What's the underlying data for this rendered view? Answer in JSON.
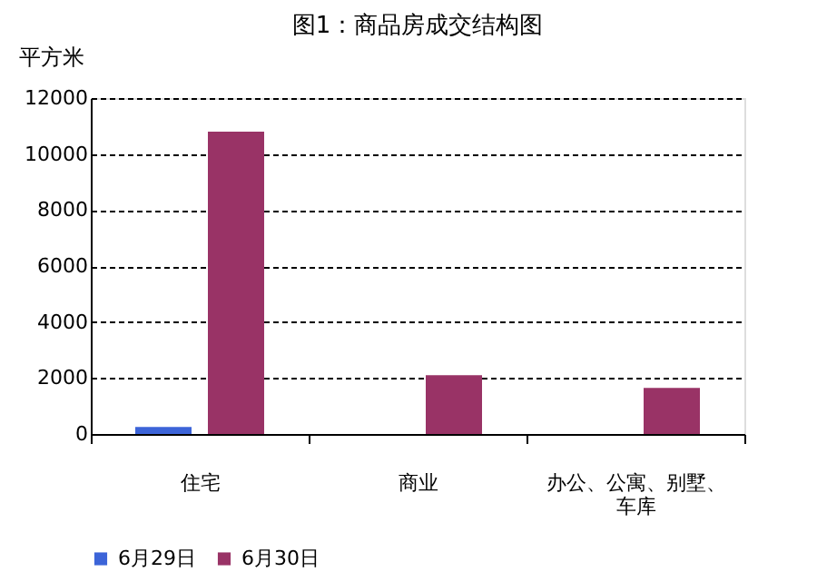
{
  "chart_data": {
    "type": "bar",
    "title": "图1：商品房成交结构图",
    "ylabel": "平方米",
    "categories": [
      "住宅",
      "商业",
      "办公、公寓、别墅、车库"
    ],
    "series": [
      {
        "name": "6月29日",
        "color": "#3c64d8",
        "values": [
          250,
          0,
          0
        ]
      },
      {
        "name": "6月30日",
        "color": "#993366",
        "values": [
          10800,
          2100,
          1650
        ]
      }
    ],
    "ylim": [
      0,
      12000
    ],
    "yticks": [
      0,
      2000,
      4000,
      6000,
      8000,
      10000,
      12000
    ],
    "grid": "y",
    "legend": "bottom"
  }
}
